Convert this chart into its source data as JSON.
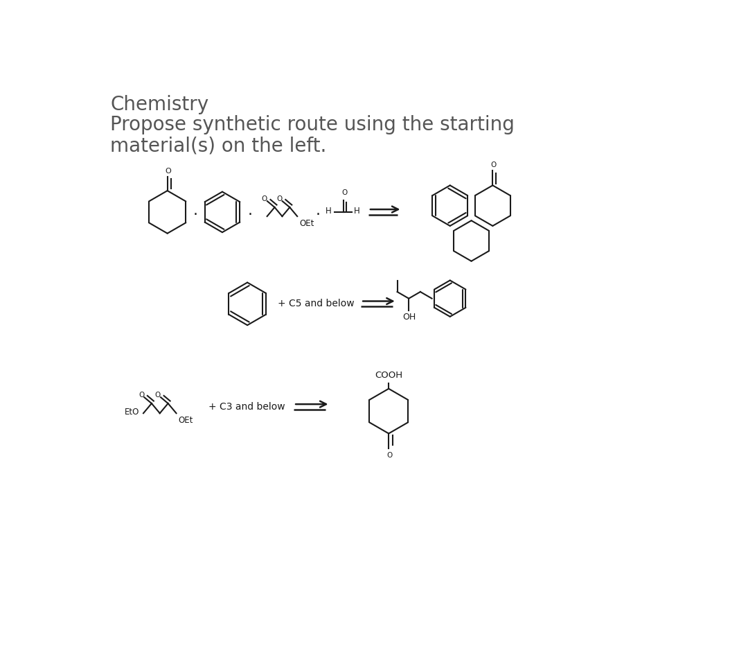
{
  "title_line1": "Chemistry",
  "title_line2": "Propose synthetic route using the starting",
  "title_line3": "material(s) on the left.",
  "bg_color": "#ffffff",
  "line_color": "#1a1a1a",
  "label_OEt": "OEt",
  "label_OEt2": "OEt",
  "label_EtO": "EtO",
  "label_OH": "OH",
  "label_COOH": "COOH",
  "label_C5": "+ C5 and below",
  "label_C3": "+ C3 and below",
  "title_color": "#555555",
  "title_fontsize": 20
}
